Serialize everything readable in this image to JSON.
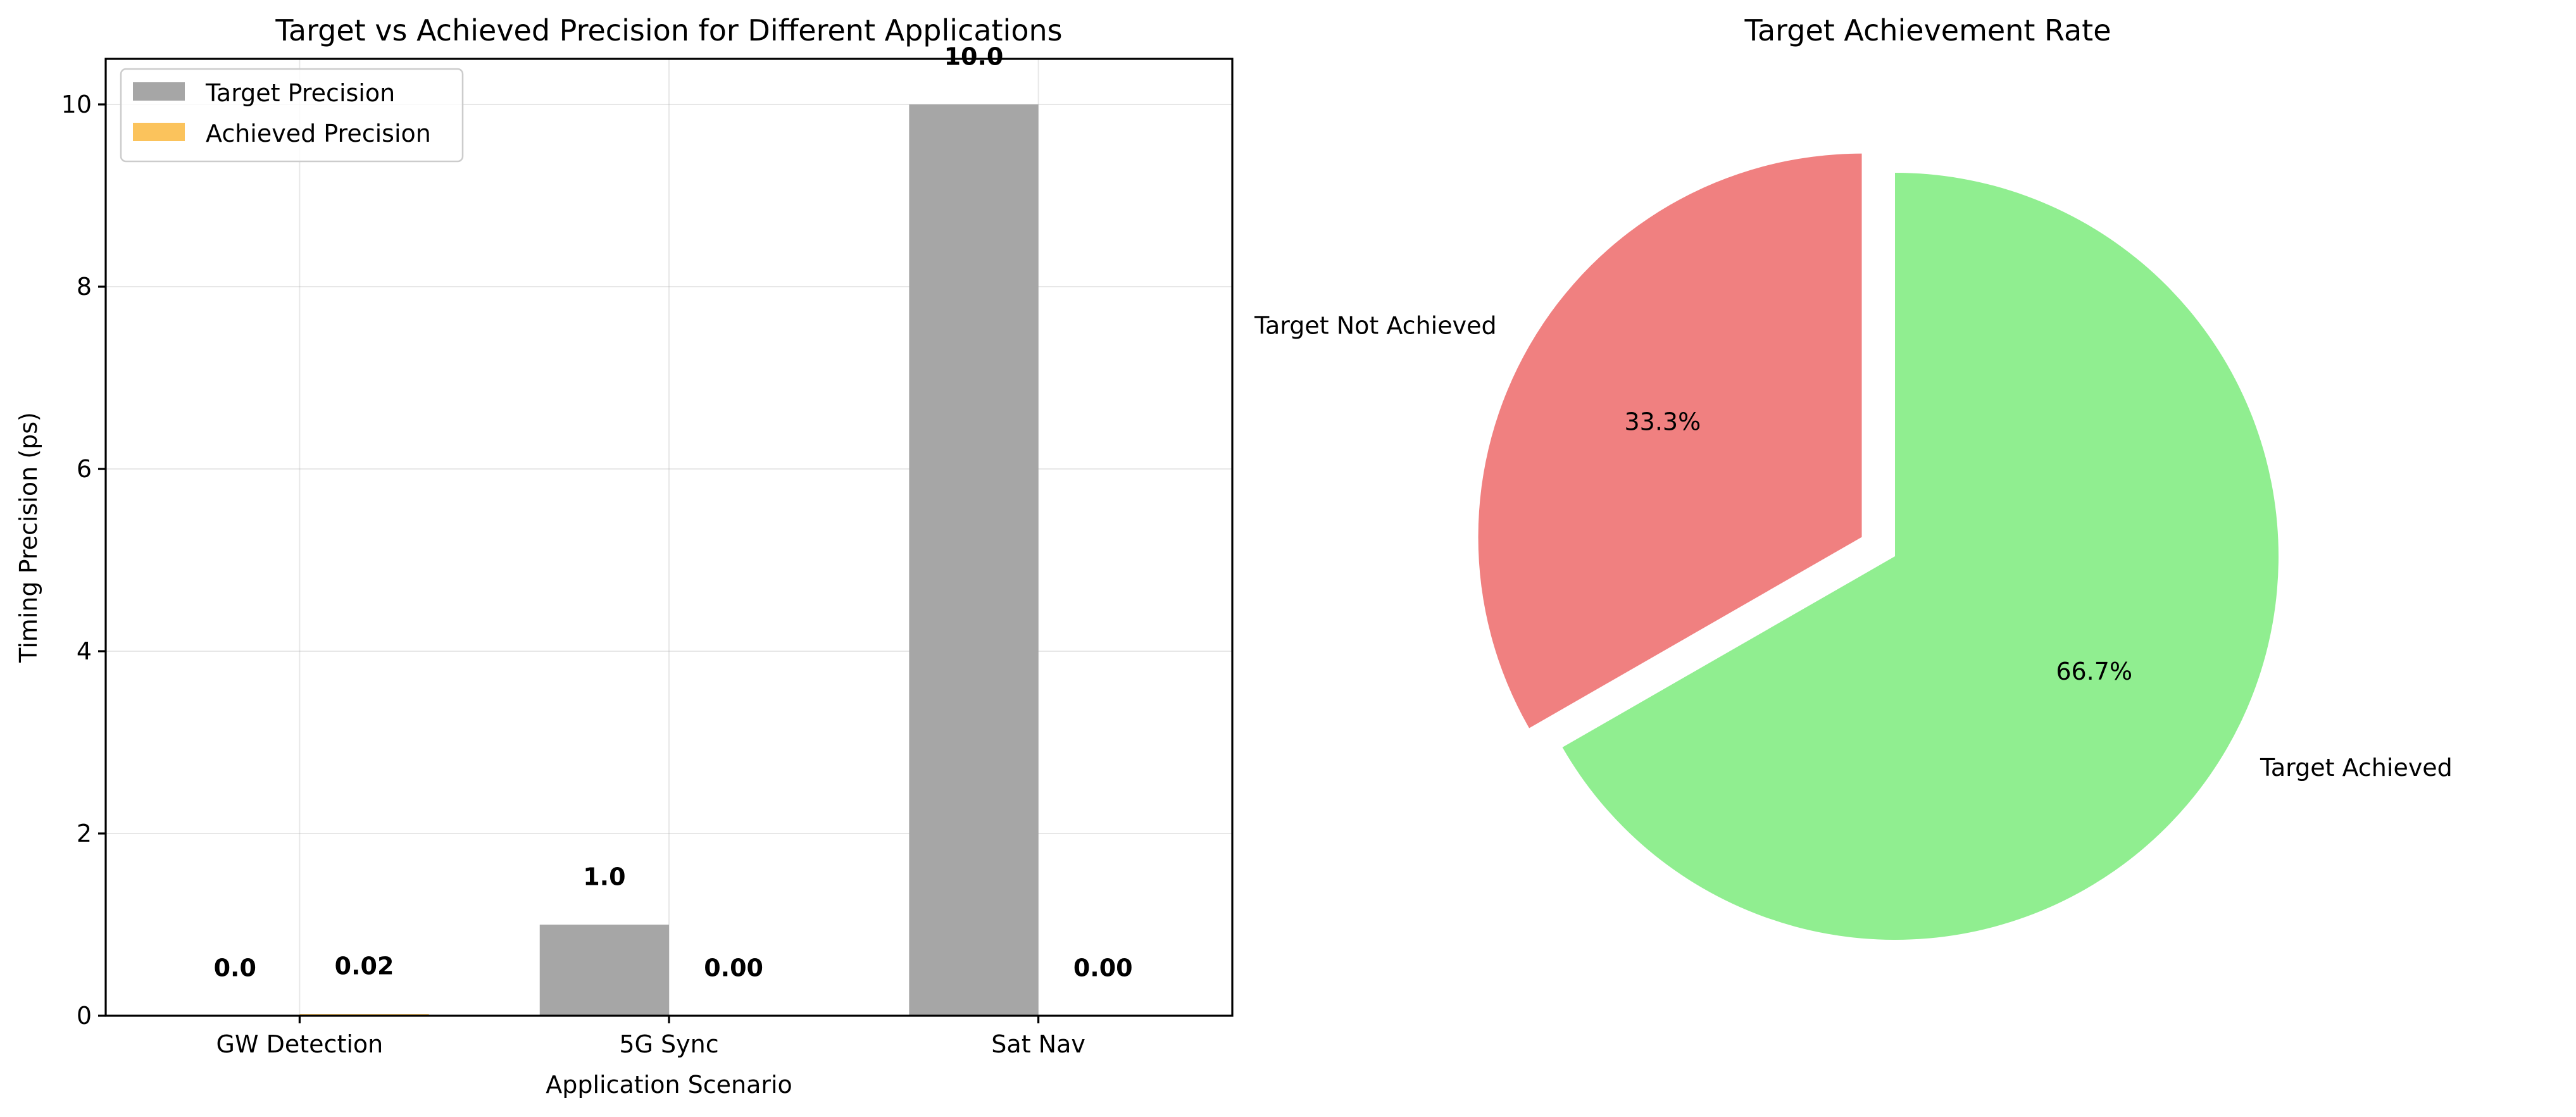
{
  "chart_data": [
    {
      "type": "bar",
      "title": "Target vs Achieved Precision for Different Applications",
      "xlabel": "Application Scenario",
      "ylabel": "Timing Precision (ps)",
      "categories": [
        "GW Detection",
        "5G Sync",
        "Sat Nav"
      ],
      "ylim": [
        0,
        10.5
      ],
      "yticks": [
        0,
        2,
        4,
        6,
        8,
        10
      ],
      "grid": true,
      "legend_position": "top-left",
      "series": [
        {
          "name": "Target Precision",
          "color": "#a6a6a6",
          "values": [
            0.001,
            1.0,
            10.0
          ],
          "labels": [
            "0.0",
            "1.0",
            "10.0"
          ]
        },
        {
          "name": "Achieved Precision",
          "color": "#fbbc4a",
          "values": [
            0.02,
            0.001,
            0.001
          ],
          "labels": [
            "0.02",
            "0.00",
            "0.00"
          ]
        }
      ]
    },
    {
      "type": "pie",
      "title": "Target Achievement Rate",
      "legend_position": "none",
      "slices": [
        {
          "label": "Target Achieved",
          "value": 66.7,
          "pct_label": "66.7%",
          "color": "#90ee90",
          "explode": 0
        },
        {
          "label": "Target Not Achieved",
          "value": 33.3,
          "pct_label": "33.3%",
          "color": "#f08080",
          "explode": 0.1
        }
      ]
    }
  ]
}
